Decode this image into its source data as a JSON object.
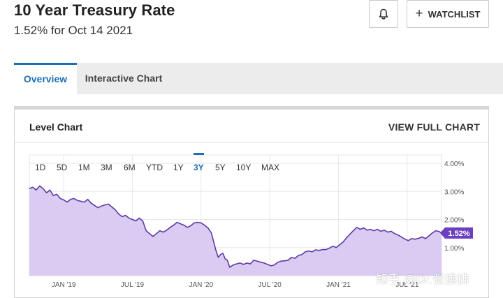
{
  "header": {
    "title": "10 Year Treasury Rate",
    "subtitle": "1.52% for Oct 14 2021",
    "watchlist_label": "WATCHLIST",
    "bell_icon": "bell-icon",
    "plus_icon": "plus-icon"
  },
  "tabs": [
    {
      "label": "Overview",
      "active": true
    },
    {
      "label": "Interactive Chart",
      "active": false
    }
  ],
  "card": {
    "title": "Level Chart",
    "link": "VIEW FULL CHART"
  },
  "ranges": [
    {
      "label": "1D",
      "active": false
    },
    {
      "label": "5D",
      "active": false
    },
    {
      "label": "1M",
      "active": false
    },
    {
      "label": "3M",
      "active": false
    },
    {
      "label": "6M",
      "active": false
    },
    {
      "label": "YTD",
      "active": false
    },
    {
      "label": "1Y",
      "active": false
    },
    {
      "label": "3Y",
      "active": true
    },
    {
      "label": "5Y",
      "active": false
    },
    {
      "label": "10Y",
      "active": false
    },
    {
      "label": "MAX",
      "active": false
    }
  ],
  "chart_data": {
    "type": "area",
    "x_tick_labels": [
      "JAN '19",
      "JUL '19",
      "JAN '20",
      "JUL '20",
      "JAN '21",
      "JUL '21"
    ],
    "y_tick_labels": [
      "1.00%",
      "2.00%",
      "3.00%",
      "4.00%"
    ],
    "ylim": [
      0,
      4.3
    ],
    "grid": true,
    "current_value_label": "1.52%",
    "current_value": 1.52,
    "x_unit": "months since Oct 2018",
    "series": [
      {
        "points": [
          [
            0.0,
            3.1
          ],
          [
            0.3,
            3.15
          ],
          [
            0.6,
            3.05
          ],
          [
            0.9,
            3.2
          ],
          [
            1.2,
            3.1
          ],
          [
            1.5,
            2.95
          ],
          [
            1.8,
            3.05
          ],
          [
            2.1,
            2.85
          ],
          [
            2.4,
            2.9
          ],
          [
            2.7,
            2.75
          ],
          [
            3.0,
            2.7
          ],
          [
            3.3,
            2.62
          ],
          [
            3.6,
            2.72
          ],
          [
            3.9,
            2.75
          ],
          [
            4.2,
            2.68
          ],
          [
            4.5,
            2.65
          ],
          [
            4.8,
            2.62
          ],
          [
            5.1,
            2.72
          ],
          [
            5.4,
            2.58
          ],
          [
            5.7,
            2.5
          ],
          [
            6.0,
            2.42
          ],
          [
            6.3,
            2.48
          ],
          [
            6.6,
            2.52
          ],
          [
            6.9,
            2.55
          ],
          [
            7.2,
            2.45
          ],
          [
            7.5,
            2.35
          ],
          [
            7.8,
            2.2
          ],
          [
            8.1,
            2.1
          ],
          [
            8.4,
            2.15
          ],
          [
            8.7,
            2.05
          ],
          [
            9.0,
            2.0
          ],
          [
            9.3,
            1.95
          ],
          [
            9.6,
            2.05
          ],
          [
            9.9,
            1.95
          ],
          [
            10.2,
            1.6
          ],
          [
            10.5,
            1.5
          ],
          [
            10.8,
            1.4
          ],
          [
            11.1,
            1.5
          ],
          [
            11.4,
            1.6
          ],
          [
            11.7,
            1.55
          ],
          [
            12.0,
            1.62
          ],
          [
            12.3,
            1.72
          ],
          [
            12.6,
            1.8
          ],
          [
            12.9,
            1.9
          ],
          [
            13.2,
            1.85
          ],
          [
            13.5,
            1.8
          ],
          [
            13.8,
            1.72
          ],
          [
            14.1,
            1.78
          ],
          [
            14.4,
            1.88
          ],
          [
            14.7,
            1.9
          ],
          [
            15.0,
            1.88
          ],
          [
            15.3,
            1.8
          ],
          [
            15.6,
            1.7
          ],
          [
            15.9,
            1.52
          ],
          [
            16.1,
            1.2
          ],
          [
            16.3,
            0.9
          ],
          [
            16.5,
            0.65
          ],
          [
            16.7,
            0.75
          ],
          [
            16.9,
            0.8
          ],
          [
            17.1,
            0.6
          ],
          [
            17.3,
            0.55
          ],
          [
            17.5,
            0.3
          ],
          [
            17.8,
            0.38
          ],
          [
            18.1,
            0.42
          ],
          [
            18.4,
            0.45
          ],
          [
            18.7,
            0.4
          ],
          [
            19.0,
            0.45
          ],
          [
            19.3,
            0.42
          ],
          [
            19.6,
            0.55
          ],
          [
            19.9,
            0.52
          ],
          [
            20.2,
            0.48
          ],
          [
            20.5,
            0.45
          ],
          [
            20.8,
            0.4
          ],
          [
            21.1,
            0.35
          ],
          [
            21.4,
            0.38
          ],
          [
            21.7,
            0.48
          ],
          [
            22.0,
            0.52
          ],
          [
            22.3,
            0.53
          ],
          [
            22.6,
            0.55
          ],
          [
            22.9,
            0.65
          ],
          [
            23.2,
            0.62
          ],
          [
            23.5,
            0.72
          ],
          [
            23.8,
            0.75
          ],
          [
            24.1,
            0.85
          ],
          [
            24.4,
            0.88
          ],
          [
            24.7,
            0.85
          ],
          [
            25.0,
            0.92
          ],
          [
            25.3,
            0.9
          ],
          [
            25.6,
            0.93
          ],
          [
            25.9,
            0.93
          ],
          [
            26.2,
            0.98
          ],
          [
            26.5,
            1.05
          ],
          [
            26.8,
            1.0
          ],
          [
            27.1,
            1.1
          ],
          [
            27.4,
            1.2
          ],
          [
            27.7,
            1.35
          ],
          [
            28.0,
            1.48
          ],
          [
            28.3,
            1.6
          ],
          [
            28.6,
            1.72
          ],
          [
            28.9,
            1.65
          ],
          [
            29.2,
            1.7
          ],
          [
            29.5,
            1.62
          ],
          [
            29.8,
            1.65
          ],
          [
            30.1,
            1.6
          ],
          [
            30.4,
            1.65
          ],
          [
            30.7,
            1.58
          ],
          [
            31.0,
            1.62
          ],
          [
            31.3,
            1.55
          ],
          [
            31.6,
            1.58
          ],
          [
            31.9,
            1.5
          ],
          [
            32.2,
            1.45
          ],
          [
            32.5,
            1.38
          ],
          [
            32.8,
            1.3
          ],
          [
            33.1,
            1.25
          ],
          [
            33.4,
            1.32
          ],
          [
            33.7,
            1.3
          ],
          [
            34.0,
            1.33
          ],
          [
            34.3,
            1.38
          ],
          [
            34.6,
            1.32
          ],
          [
            34.9,
            1.42
          ],
          [
            35.2,
            1.52
          ],
          [
            35.5,
            1.6
          ],
          [
            35.8,
            1.57
          ],
          [
            36.0,
            1.52
          ]
        ]
      }
    ]
  },
  "colors": {
    "accent": "#1f6db5",
    "line": "#5e3aa6",
    "fill": "#d9cbf2",
    "value_badge": "#6c3fc0"
  },
  "watermark": "知乎 @Dr.张拂拂"
}
